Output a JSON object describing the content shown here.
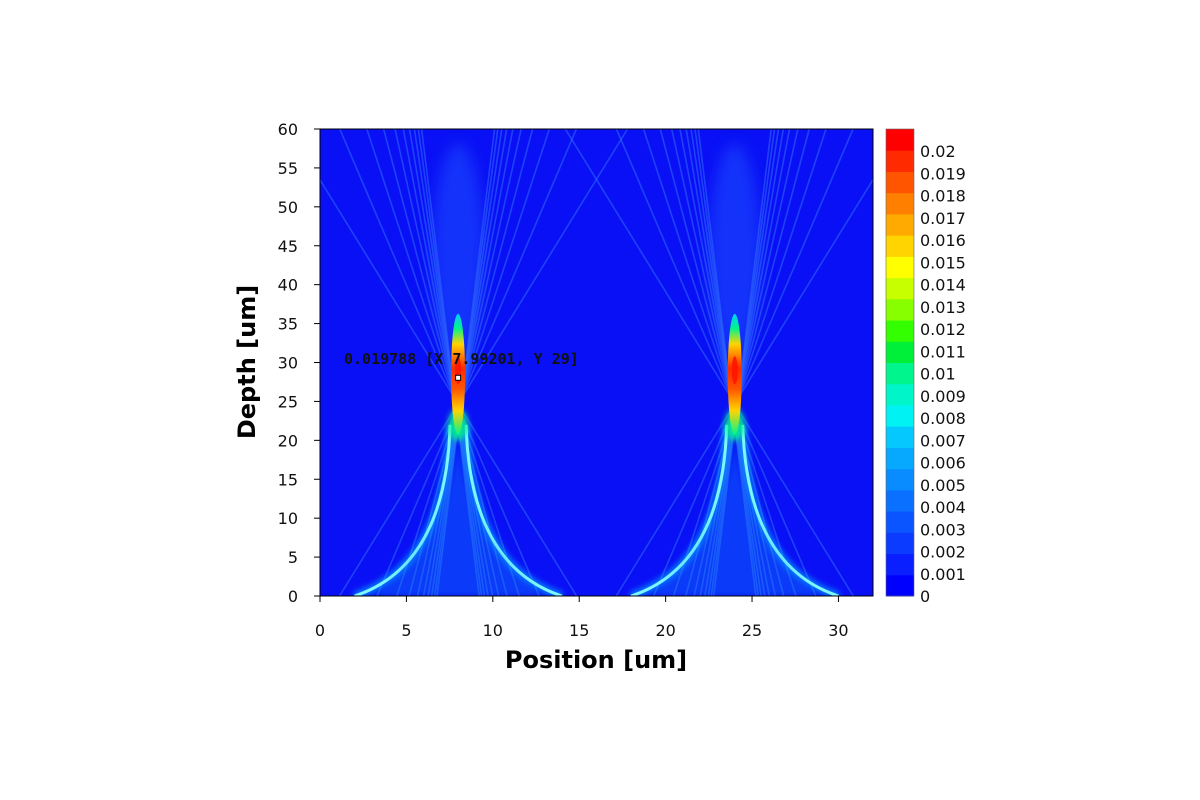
{
  "chart_data": {
    "type": "heatmap",
    "title": "",
    "xlabel": "Position [um]",
    "ylabel": "Depth [um]",
    "xlim": [
      0,
      32
    ],
    "ylim": [
      0,
      60
    ],
    "x_ticks": [
      "0",
      "5",
      "10",
      "15",
      "20",
      "25",
      "30"
    ],
    "y_ticks": [
      "0",
      "5",
      "10",
      "15",
      "20",
      "25",
      "30",
      "35",
      "40",
      "45",
      "50",
      "55",
      "60"
    ],
    "colorbar": {
      "min": 0,
      "max": 0.021,
      "labels": [
        "0",
        "0.001",
        "0.002",
        "0.003",
        "0.004",
        "0.005",
        "0.006",
        "0.007",
        "0.008",
        "0.009",
        "0.01",
        "0.011",
        "0.012",
        "0.013",
        "0.014",
        "0.015",
        "0.016",
        "0.017",
        "0.018",
        "0.019",
        "0.02"
      ],
      "colors": [
        "#0000ff",
        "#0a1fff",
        "#0b3bff",
        "#0a55ff",
        "#0a70ff",
        "#098cff",
        "#07a9ff",
        "#05c8ff",
        "#01f2f2",
        "#00f5c8",
        "#00f58c",
        "#00f03a",
        "#33ff00",
        "#88ff00",
        "#c8ff00",
        "#ffff00",
        "#ffd400",
        "#ffaa00",
        "#ff8000",
        "#ff5500",
        "#ff2a00",
        "#ff0000"
      ]
    },
    "background_color": "#0a10f5",
    "peaks": [
      {
        "x": 7.99,
        "y": 29,
        "value": 0.0198
      },
      {
        "x": 24,
        "y": 29,
        "value": 0.0198
      }
    ],
    "cusp_bases": [
      [
        2,
        14
      ],
      [
        18,
        30
      ]
    ],
    "probe": {
      "text": "0.019788 [X 7.99201, Y 29]",
      "x": 7.99201,
      "y": 29,
      "value": 0.019788
    }
  }
}
